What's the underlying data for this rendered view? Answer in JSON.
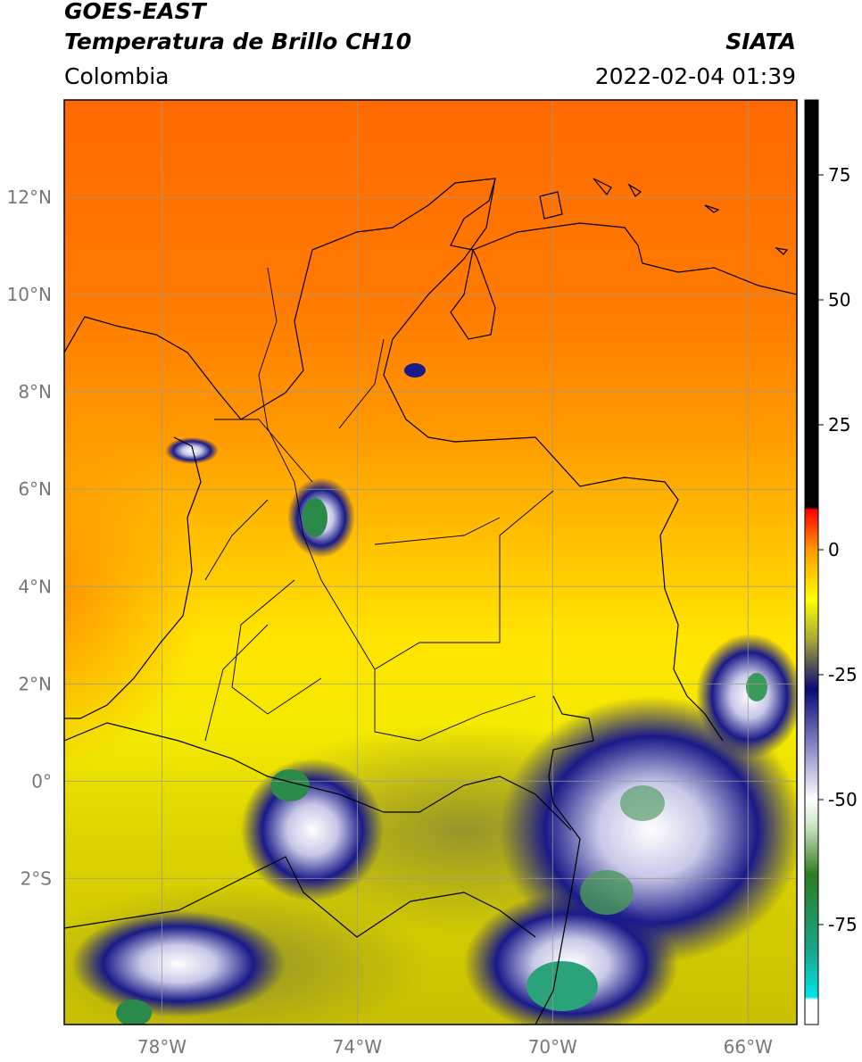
{
  "header": {
    "satellite": "GOES-EAST",
    "product": "Temperatura de Brillo CH10",
    "agency": "SIATA",
    "region": "Colombia",
    "timestamp": "2022-02-04 01:39"
  },
  "map": {
    "lon_range": [
      -80,
      -65
    ],
    "lat_range": [
      -5,
      14
    ],
    "lat_ticks": [
      {
        "value": 12,
        "label": "12°N"
      },
      {
        "value": 10,
        "label": "10°N"
      },
      {
        "value": 8,
        "label": "8°N"
      },
      {
        "value": 6,
        "label": "6°N"
      },
      {
        "value": 4,
        "label": "4°N"
      },
      {
        "value": 2,
        "label": "2°N"
      },
      {
        "value": 0,
        "label": "0°"
      },
      {
        "value": -2,
        "label": "2°S"
      }
    ],
    "lon_ticks": [
      {
        "value": -78,
        "label": "78°W"
      },
      {
        "value": -74,
        "label": "74°W"
      },
      {
        "value": -70,
        "label": "70°W"
      },
      {
        "value": -66,
        "label": "66°W"
      }
    ]
  },
  "colorbar": {
    "range": [
      -95,
      90
    ],
    "ticks": [
      {
        "value": 75,
        "label": "75"
      },
      {
        "value": 50,
        "label": "50"
      },
      {
        "value": 25,
        "label": "25"
      },
      {
        "value": 0,
        "label": "0"
      },
      {
        "value": -25,
        "label": "-25"
      },
      {
        "value": -50,
        "label": "-50"
      },
      {
        "value": -75,
        "label": "-75"
      }
    ],
    "stops": [
      {
        "value": -95,
        "color": "#ffffff"
      },
      {
        "value": -90,
        "color": "#ffffff"
      },
      {
        "value": -89.5,
        "color": "#00e5e5"
      },
      {
        "value": -80,
        "color": "#1aa38a"
      },
      {
        "value": -65,
        "color": "#2e7d1e"
      },
      {
        "value": -55,
        "color": "#cfe8c8"
      },
      {
        "value": -50,
        "color": "#ffffff"
      },
      {
        "value": -40,
        "color": "#8f8fc8"
      },
      {
        "value": -28,
        "color": "#0a0a78"
      },
      {
        "value": -23,
        "color": "#555555"
      },
      {
        "value": -18,
        "color": "#a8a83a"
      },
      {
        "value": -10,
        "color": "#ffff00"
      },
      {
        "value": 0,
        "color": "#ff9900"
      },
      {
        "value": 8,
        "color": "#ff0000"
      },
      {
        "value": 8.5,
        "color": "#000000"
      },
      {
        "value": 90,
        "color": "#000000"
      }
    ]
  }
}
